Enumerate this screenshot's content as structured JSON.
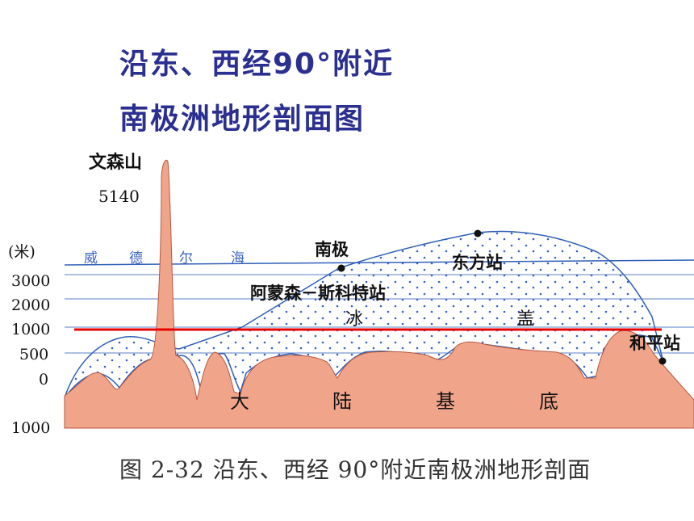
{
  "title": {
    "line1": "沿东、西经90°附近",
    "line2": "南极洲地形剖面图"
  },
  "labels": {
    "peak_name": "文森山",
    "peak_height": "5140",
    "sea": [
      "威",
      "德",
      "尔",
      "海"
    ],
    "south_pole": "南极",
    "amundsen_scott": "阿蒙森－斯科特站",
    "vostok": "东方站",
    "ice_cap": [
      "冰",
      "盖"
    ],
    "mirny": "和平站",
    "bedrock": [
      "大",
      "陆",
      "基",
      "底"
    ]
  },
  "axis": {
    "unit": "(米)",
    "ticks": [
      "3000",
      "2000",
      "1000",
      "500",
      "0",
      "1000"
    ]
  },
  "colors": {
    "title": "#2b2f8f",
    "land": "#f0a58b",
    "ice_outline": "#2f5fb8",
    "ice_dots": "#3a63c2",
    "marker_line": "#e60000"
  },
  "caption": "图 2-32   沿东、西经 90°附近南极洲地形剖面"
}
